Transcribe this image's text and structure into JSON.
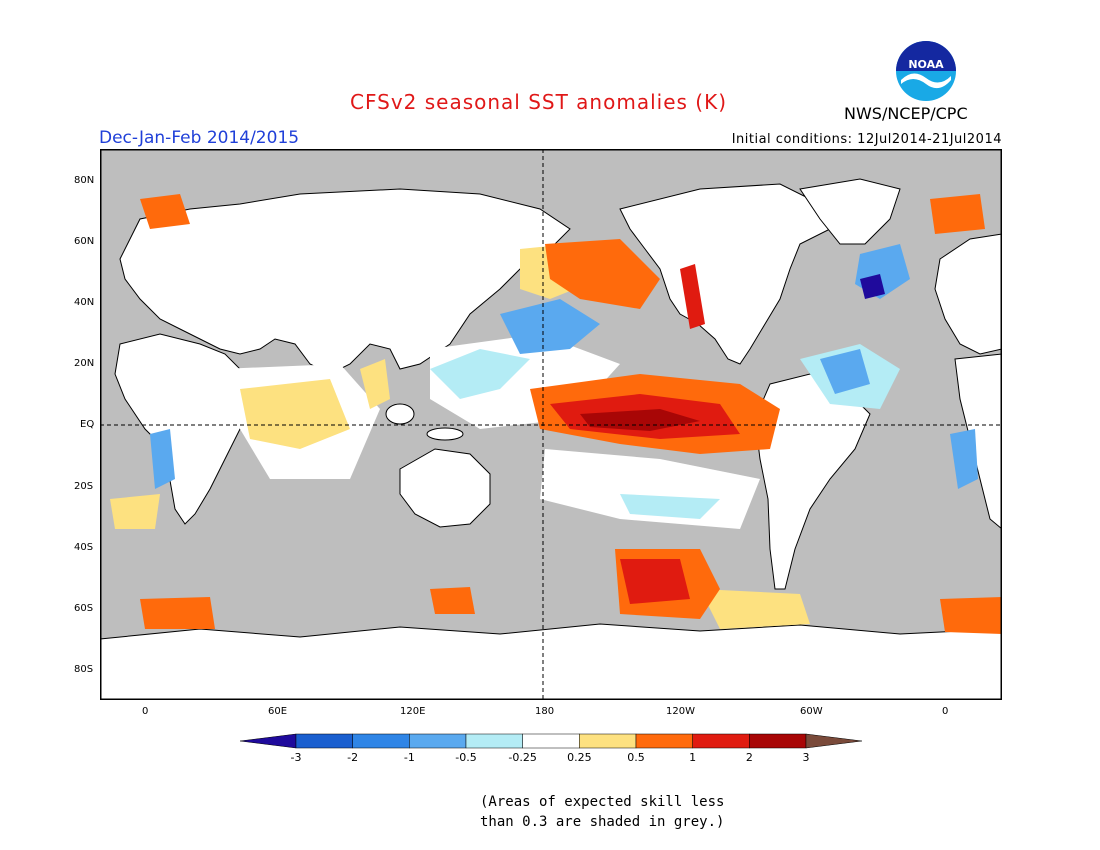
{
  "header": {
    "title": "CFSv2 seasonal SST anomalies (K)",
    "season": "Dec-Jan-Feb 2014/2015",
    "initial_conditions": "Initial conditions: 12Jul2014-21Jul2014",
    "agency": "NWS/NCEP/CPC",
    "logo_text": "NOAA"
  },
  "map": {
    "projection": "cylindrical equidistant",
    "lon_labels": [
      "0",
      "60E",
      "120E",
      "180",
      "120W",
      "60W",
      "0"
    ],
    "lat_labels": [
      "80N",
      "60N",
      "40N",
      "20N",
      "EQ",
      "20S",
      "40S",
      "60S",
      "80S"
    ],
    "reference_lines": [
      "Equator",
      "Dateline (180)"
    ],
    "masked_color": "#bebebe",
    "land_color": "#ffffff"
  },
  "legend": {
    "tick_labels": [
      "-3",
      "-2",
      "-1",
      "-0.5",
      "-0.25",
      "0.25",
      "0.5",
      "1",
      "2",
      "3"
    ],
    "colors": [
      "#1f0a9c",
      "#1a5fcf",
      "#2f85e6",
      "#5aa9ef",
      "#b4ecf5",
      "#ffffff",
      "#fde180",
      "#ff6a0c",
      "#e01b10",
      "#a80606",
      "#7a4a3a"
    ],
    "extends": "both"
  },
  "note": {
    "line1": "(Areas of expected skill less",
    "line2": "than 0.3 are shaded in grey.)"
  }
}
